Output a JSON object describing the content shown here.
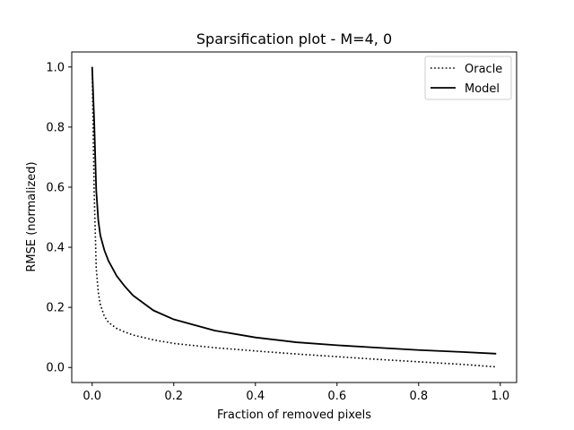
{
  "chart_data": {
    "type": "line",
    "title": "Sparsification plot - M=4, 0",
    "xlabel": "Fraction of removed pixels",
    "ylabel": "RMSE (normalized)",
    "xlim": [
      -0.05,
      1.04
    ],
    "ylim": [
      -0.05,
      1.05
    ],
    "xticks": [
      0.0,
      0.2,
      0.4,
      0.6,
      0.8,
      1.0
    ],
    "xtick_labels": [
      "0.0",
      "0.2",
      "0.4",
      "0.6",
      "0.8",
      "1.0"
    ],
    "yticks": [
      0.0,
      0.2,
      0.4,
      0.6,
      0.8,
      1.0
    ],
    "ytick_labels": [
      "0.0",
      "0.2",
      "0.4",
      "0.6",
      "0.8",
      "1.0"
    ],
    "grid": false,
    "legend_position": "top-right",
    "series": [
      {
        "name": "Oracle",
        "style": "dotted",
        "color": "#000000",
        "x": [
          0.0,
          0.005,
          0.01,
          0.015,
          0.02,
          0.03,
          0.04,
          0.06,
          0.08,
          0.1,
          0.15,
          0.2,
          0.3,
          0.4,
          0.5,
          0.6,
          0.7,
          0.8,
          0.9,
          0.99
        ],
        "y": [
          1.0,
          0.58,
          0.33,
          0.25,
          0.21,
          0.17,
          0.15,
          0.13,
          0.118,
          0.108,
          0.092,
          0.08,
          0.066,
          0.055,
          0.045,
          0.036,
          0.027,
          0.019,
          0.011,
          0.002
        ]
      },
      {
        "name": "Model",
        "style": "solid",
        "color": "#000000",
        "x": [
          0.0,
          0.005,
          0.01,
          0.015,
          0.02,
          0.03,
          0.04,
          0.06,
          0.08,
          0.1,
          0.15,
          0.2,
          0.3,
          0.4,
          0.5,
          0.6,
          0.7,
          0.8,
          0.9,
          0.99
        ],
        "y": [
          1.0,
          0.82,
          0.59,
          0.49,
          0.44,
          0.39,
          0.355,
          0.305,
          0.27,
          0.24,
          0.19,
          0.16,
          0.123,
          0.1,
          0.084,
          0.074,
          0.066,
          0.058,
          0.052,
          0.046
        ]
      }
    ]
  }
}
